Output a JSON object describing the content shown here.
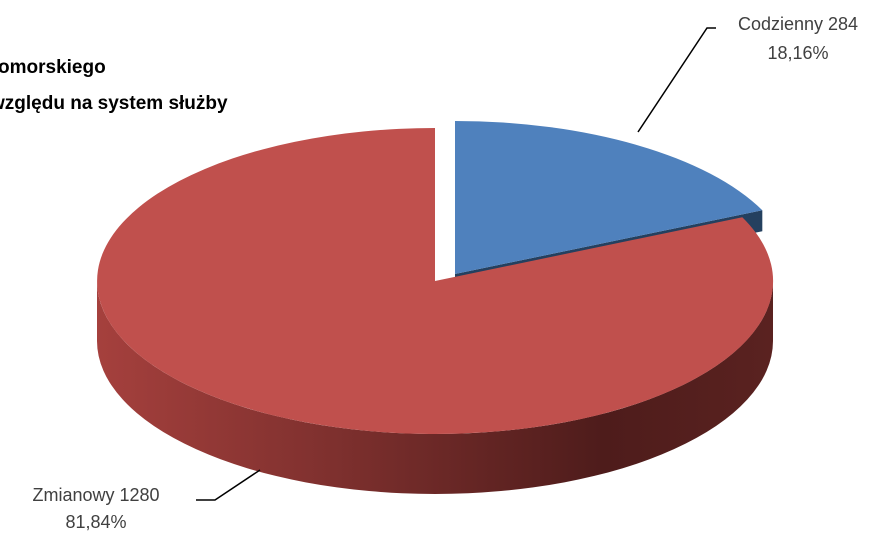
{
  "chart_data": {
    "type": "pie",
    "title_lines": [
      "omorskiego",
      "względu na system służby"
    ],
    "slices": [
      {
        "name": "Codzienny",
        "value": 284,
        "percent_label": "18,16%",
        "label": "Codzienny 284",
        "color": "#4F81BD",
        "side_color": "#24405F"
      },
      {
        "name": "Zmianowy",
        "value": 1280,
        "percent_label": "81,84%",
        "label": "Zmianowy 1280",
        "color": "#C0504D",
        "side_color": "#5E2220"
      }
    ],
    "exploded_slice": "Codzienny",
    "three_d": true,
    "legend": "none",
    "data_labels": "outside with leader lines"
  }
}
